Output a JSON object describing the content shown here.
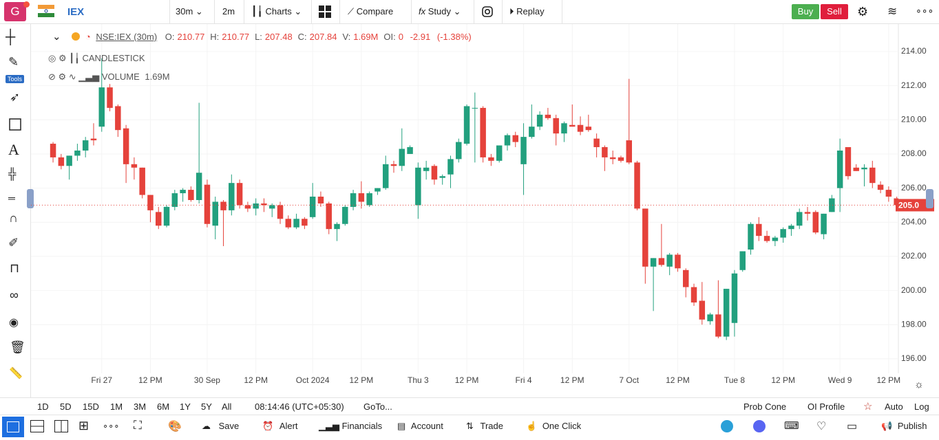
{
  "toolbar": {
    "avatar": "G",
    "symbol": "IEX",
    "interval": "30m",
    "range": "2m",
    "charts": "Charts",
    "compare": "Compare",
    "study": "Study",
    "replay": "Replay",
    "buy": "Buy",
    "sell": "Sell"
  },
  "left_tools": {
    "badge": "Tools"
  },
  "legend": {
    "symbol": "NSE:IEX (30m)",
    "fields": [
      {
        "label": "O:",
        "value": "210.77"
      },
      {
        "label": "H:",
        "value": "210.77"
      },
      {
        "label": "L:",
        "value": "207.48"
      },
      {
        "label": "C:",
        "value": "207.84"
      },
      {
        "label": "V:",
        "value": "1.69M"
      },
      {
        "label": "OI:",
        "value": "0"
      }
    ],
    "change": "-2.91",
    "change_pct": "(-1.38%)",
    "study_1": "CANDLESTICK",
    "study_2": "VOLUME",
    "study_2_value": "1.69M"
  },
  "chart_data": {
    "type": "candlestick",
    "up_color": "#22a07e",
    "down_color": "#e5423b",
    "grid": true,
    "xlim": [
      -2.72,
      104.2
    ],
    "ylim": [
      195.15,
      215.61
    ],
    "xticks": [
      {
        "value": 6,
        "label": "Fri 27"
      },
      {
        "value": 12,
        "label": "12 PM"
      },
      {
        "value": 19,
        "label": "30 Sep"
      },
      {
        "value": 25,
        "label": "12 PM"
      },
      {
        "value": 32,
        "label": "Oct 2024"
      },
      {
        "value": 38,
        "label": "12 PM"
      },
      {
        "value": 45,
        "label": "Thu 3"
      },
      {
        "value": 51,
        "label": "12 PM"
      },
      {
        "value": 58,
        "label": "Fri 4"
      },
      {
        "value": 64,
        "label": "12 PM"
      },
      {
        "value": 71,
        "label": "7 Oct"
      },
      {
        "value": 77,
        "label": "12 PM"
      },
      {
        "value": 84,
        "label": "Tue 8"
      },
      {
        "value": 90,
        "label": "12 PM"
      },
      {
        "value": 97,
        "label": "Wed 9"
      },
      {
        "value": 103,
        "label": "12 PM"
      }
    ],
    "yticks": [
      {
        "value": 196,
        "label": "196.00"
      },
      {
        "value": 198,
        "label": "198.00"
      },
      {
        "value": 200,
        "label": "200.00"
      },
      {
        "value": 202,
        "label": "202.00"
      },
      {
        "value": 204,
        "label": "204.00"
      },
      {
        "value": 206,
        "label": "206.00"
      },
      {
        "value": 208,
        "label": "208.00"
      },
      {
        "value": 210,
        "label": "210.00"
      },
      {
        "value": 212,
        "label": "212.00"
      },
      {
        "value": 214,
        "label": "214.00"
      }
    ],
    "last_price": {
      "value": 205.0,
      "label": "205.0"
    },
    "open": [
      208.6,
      207.8,
      207.3,
      207.9,
      208.2,
      208.9,
      209.6,
      211.9,
      210.8,
      209.5,
      207.4,
      207.2,
      205.6,
      204.6,
      203.8,
      204.9,
      205.7,
      205.9,
      205.3,
      206.2,
      203.8,
      205.2,
      204.7,
      206.3,
      205.0,
      204.8,
      205.1,
      204.8,
      205.0,
      204.2,
      203.7,
      204.2,
      204.3,
      205.5,
      205.1,
      203.6,
      203.9,
      204.9,
      205.7,
      205.0,
      205.8,
      206.0,
      207.4,
      207.3,
      208.0,
      205.0,
      207.0,
      207.3,
      206.6,
      206.8,
      207.7,
      208.6,
      210.7,
      210.7,
      207.8,
      207.6,
      208.5,
      209.1,
      207.4,
      209.0,
      209.6,
      210.3,
      210.1,
      209.2,
      209.7,
      209.7,
      209.6,
      208.9,
      208.4,
      207.8,
      207.8,
      208.8,
      207.5,
      204.8,
      201.4,
      201.9,
      201.4,
      202.1,
      201.2,
      200.2,
      199.4,
      198.2,
      198.6,
      197.3,
      198.1,
      201.2,
      202.4,
      203.9,
      203.2,
      202.9,
      203.1,
      203.6,
      203.8,
      204.6,
      204.6,
      203.3,
      204.6,
      206.0,
      208.4,
      207.2,
      207.1,
      207.2,
      206.2,
      205.9,
      205.4
    ],
    "high": [
      208.7,
      208.0,
      207.9,
      208.6,
      209.0,
      209.8,
      213.6,
      212.1,
      210.9,
      209.7,
      207.8,
      207.2,
      205.6,
      204.9,
      205.0,
      205.9,
      206.0,
      206.1,
      211.0,
      206.5,
      205.5,
      205.3,
      206.8,
      206.5,
      205.2,
      205.4,
      205.4,
      205.1,
      205.2,
      204.4,
      204.5,
      204.3,
      206.3,
      205.8,
      205.2,
      204.0,
      205.0,
      205.9,
      206.4,
      205.8,
      206.0,
      207.9,
      207.6,
      209.5,
      208.5,
      207.5,
      207.6,
      207.4,
      206.8,
      207.9,
      208.9,
      210.9,
      211.6,
      210.8,
      208.0,
      208.5,
      209.2,
      209.3,
      209.8,
      210.9,
      210.5,
      210.7,
      210.3,
      209.9,
      210.9,
      210.2,
      210.3,
      209.2,
      208.5,
      208.2,
      207.9,
      212.4,
      207.6,
      204.8,
      201.9,
      203.9,
      202.2,
      202.2,
      201.3,
      200.4,
      200.5,
      198.7,
      200.6,
      200.1,
      201.2,
      202.3,
      204.0,
      204.3,
      203.5,
      203.2,
      203.7,
      203.9,
      204.8,
      204.9,
      204.7,
      204.5,
      205.6,
      208.9,
      208.4,
      207.4,
      207.4,
      207.6,
      206.4,
      206.1,
      205.5
    ],
    "low": [
      207.5,
      207.1,
      206.5,
      207.6,
      207.8,
      208.5,
      209.3,
      210.5,
      209.0,
      206.3,
      206.5,
      205.4,
      204.0,
      203.6,
      203.7,
      204.7,
      205.2,
      205.2,
      205.1,
      203.7,
      203.0,
      202.6,
      204.4,
      204.8,
      204.6,
      204.4,
      204.6,
      204.3,
      203.9,
      203.6,
      203.6,
      203.6,
      204.2,
      204.9,
      203.3,
      202.9,
      203.8,
      204.7,
      204.8,
      204.9,
      205.6,
      205.9,
      206.9,
      207.0,
      208.0,
      204.2,
      206.5,
      206.2,
      206.2,
      206.0,
      207.5,
      208.5,
      207.5,
      207.5,
      207.3,
      207.5,
      208.2,
      208.4,
      205.6,
      208.9,
      209.4,
      210.0,
      208.5,
      208.7,
      209.6,
      209.1,
      209.3,
      207.8,
      207.0,
      207.4,
      207.5,
      207.4,
      204.7,
      200.4,
      198.8,
      201.4,
      200.9,
      201.1,
      199.6,
      199.1,
      198.0,
      198.0,
      197.2,
      197.1,
      197.3,
      201.1,
      202.1,
      202.9,
      202.8,
      202.6,
      202.8,
      203.2,
      203.6,
      204.1,
      203.3,
      203.0,
      204.6,
      204.6,
      206.5,
      207.0,
      206.1,
      206.0,
      205.7,
      205.2,
      205.0
    ],
    "close": [
      207.8,
      207.3,
      207.9,
      208.2,
      208.8,
      208.8,
      211.9,
      210.7,
      209.4,
      207.4,
      207.2,
      205.6,
      204.7,
      203.8,
      204.9,
      205.7,
      205.9,
      205.3,
      206.9,
      203.9,
      205.2,
      204.7,
      206.3,
      205.0,
      204.8,
      205.1,
      205.0,
      205.0,
      204.2,
      203.7,
      204.2,
      203.8,
      205.5,
      205.1,
      203.6,
      203.9,
      204.9,
      205.7,
      205.2,
      205.7,
      206.0,
      207.4,
      207.3,
      208.3,
      208.4,
      207.2,
      207.2,
      206.5,
      206.7,
      207.7,
      208.7,
      210.8,
      210.7,
      207.8,
      207.6,
      208.5,
      209.1,
      208.7,
      209.0,
      209.6,
      210.3,
      210.1,
      209.2,
      209.8,
      209.6,
      209.3,
      209.4,
      208.4,
      207.8,
      207.7,
      207.6,
      207.5,
      204.8,
      201.4,
      201.9,
      201.5,
      202.1,
      201.3,
      200.2,
      199.3,
      198.3,
      198.6,
      197.3,
      200.1,
      201.0,
      202.3,
      203.9,
      203.2,
      202.9,
      203.1,
      203.6,
      203.8,
      204.6,
      204.5,
      203.4,
      204.5,
      205.4,
      208.2,
      206.7,
      207.0,
      207.2,
      206.3,
      205.9,
      205.5,
      205.0
    ]
  },
  "bottom_bar": {
    "ranges": [
      "1D",
      "5D",
      "15D",
      "1M",
      "3M",
      "6M",
      "1Y",
      "5Y",
      "All"
    ],
    "time": "08:14:46 (UTC+05:30)",
    "goto": "GoTo...",
    "prob_cone": "Prob Cone",
    "oi_profile": "OI Profile",
    "auto": "Auto",
    "log": "Log"
  },
  "footer": {
    "save": "Save",
    "alert": "Alert",
    "financials": "Financials",
    "account": "Account",
    "trade": "Trade",
    "one_click": "One Click",
    "publish": "Publish"
  }
}
